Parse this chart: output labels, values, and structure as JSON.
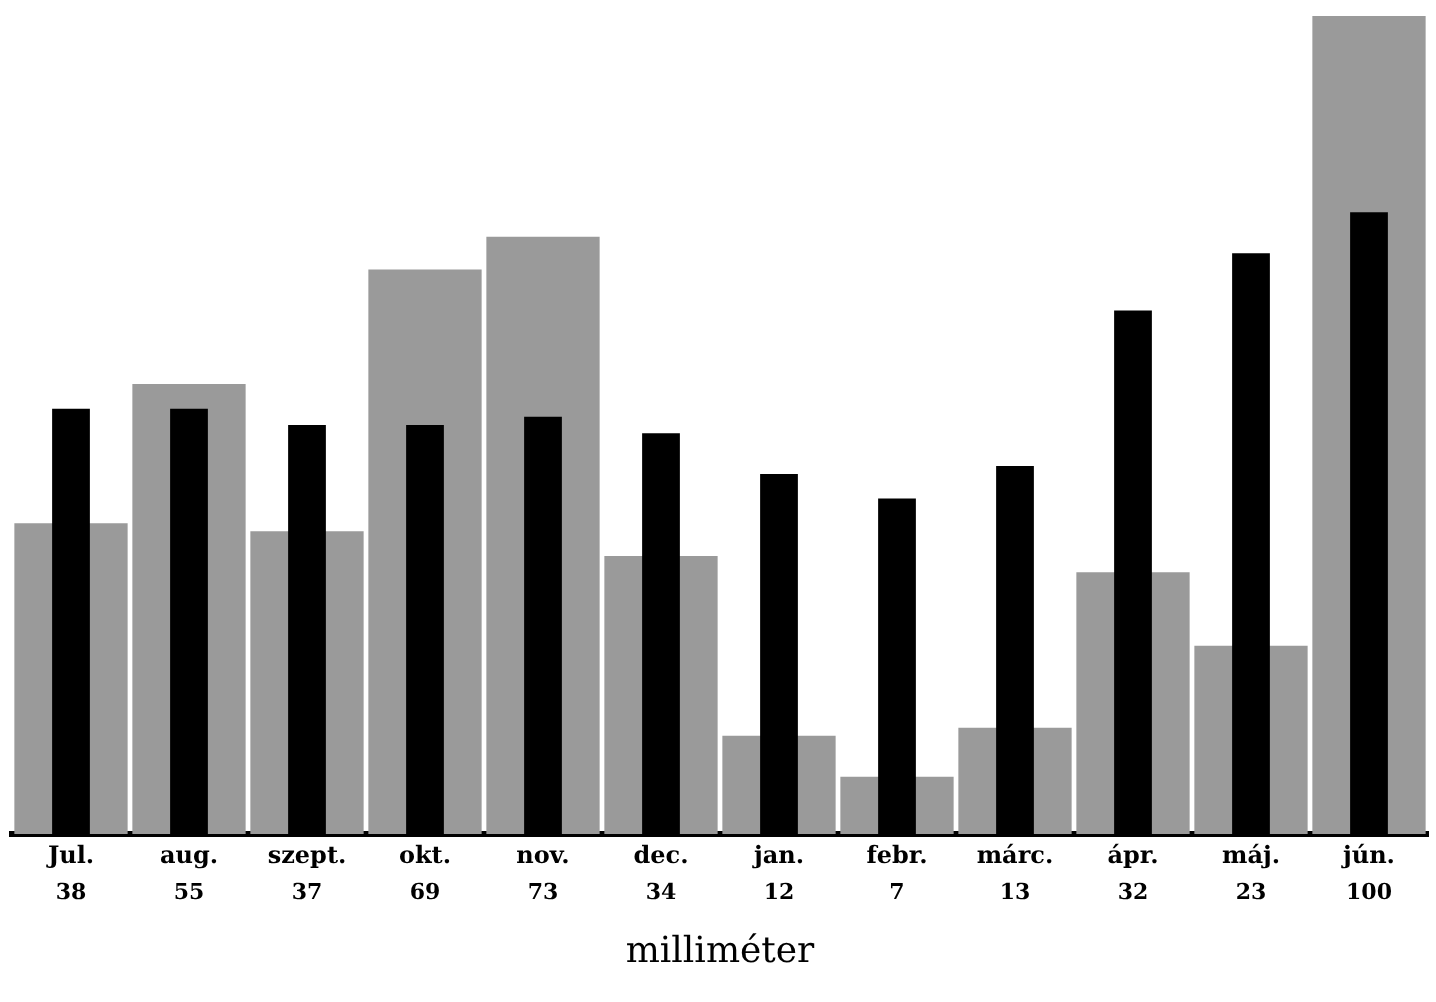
{
  "chart_data": {
    "type": "bar",
    "xlabel": "milliméter",
    "categories": [
      "Jul.",
      "aug.",
      "szept.",
      "okt.",
      "nov.",
      "dec.",
      "jan.",
      "febr.",
      "márc.",
      "ápr.",
      "máj.",
      "jún."
    ],
    "series": [
      {
        "color": "#9a9a9a",
        "values": [
          38,
          55,
          37,
          69,
          73,
          34,
          12,
          7,
          13,
          32,
          23,
          100
        ],
        "value_labels": [
          "38",
          "55",
          "37",
          "69",
          "73",
          "34",
          "12",
          "7",
          "13",
          "32",
          "23",
          "100"
        ]
      },
      {
        "color": "#000000",
        "values": [
          52,
          52,
          50,
          50,
          51,
          49,
          44,
          41,
          45,
          64,
          71,
          76
        ]
      }
    ],
    "legend": false,
    "grid": false
  }
}
